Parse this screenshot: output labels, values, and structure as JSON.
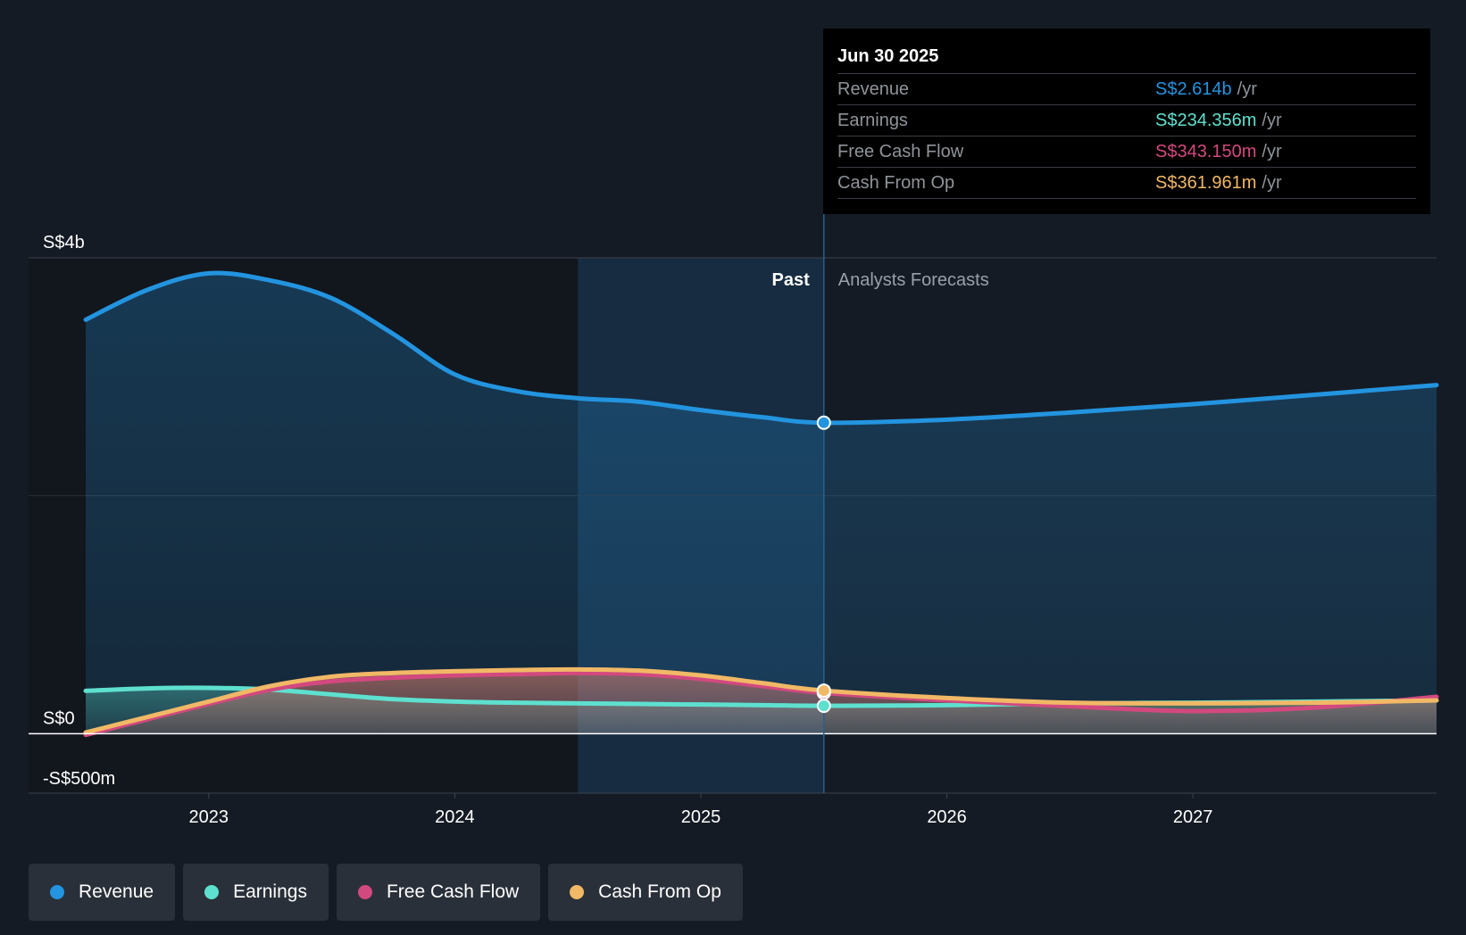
{
  "tooltip": {
    "date": "Jun 30 2025",
    "rows": [
      {
        "label": "Revenue",
        "value": "S$2.614b",
        "unit": "/yr",
        "color": "#2394df"
      },
      {
        "label": "Earnings",
        "value": "S$234.356m",
        "unit": "/yr",
        "color": "#5ee0cf"
      },
      {
        "label": "Free Cash Flow",
        "value": "S$343.150m",
        "unit": "/yr",
        "color": "#d2497f"
      },
      {
        "label": "Cash From Op",
        "value": "S$361.961m",
        "unit": "/yr",
        "color": "#f1b866"
      }
    ]
  },
  "regions": {
    "past": "Past",
    "forecast": "Analysts Forecasts"
  },
  "legend": [
    {
      "label": "Revenue",
      "color": "#2394df"
    },
    {
      "label": "Earnings",
      "color": "#5ee0cf"
    },
    {
      "label": "Free Cash Flow",
      "color": "#d2497f"
    },
    {
      "label": "Cash From Op",
      "color": "#f1b866"
    }
  ],
  "chart_data": {
    "type": "area",
    "title": "",
    "xlabel": "",
    "ylabel": "",
    "y_tick_labels": [
      {
        "value": 4000,
        "label": "S$4b"
      },
      {
        "value": 0,
        "label": "S$0"
      },
      {
        "value": -500,
        "label": "-S$500m"
      }
    ],
    "ylim": [
      -500,
      4000
    ],
    "xlim": [
      2022.5,
      2027.99
    ],
    "x_ticks": [
      2023,
      2024,
      2025,
      2026,
      2027
    ],
    "past_shade_start": 2024.5,
    "forecast_start": 2025.5,
    "series": [
      {
        "name": "Revenue",
        "color": "#2394df",
        "points": [
          [
            2022.5,
            3480
          ],
          [
            2022.75,
            3730
          ],
          [
            2023.0,
            3870
          ],
          [
            2023.25,
            3810
          ],
          [
            2023.5,
            3660
          ],
          [
            2023.75,
            3360
          ],
          [
            2024.0,
            3020
          ],
          [
            2024.25,
            2880
          ],
          [
            2024.5,
            2820
          ],
          [
            2024.75,
            2790
          ],
          [
            2025.0,
            2720
          ],
          [
            2025.25,
            2660
          ],
          [
            2025.5,
            2614
          ],
          [
            2026.0,
            2640
          ],
          [
            2026.5,
            2700
          ],
          [
            2027.0,
            2770
          ],
          [
            2027.5,
            2850
          ],
          [
            2027.99,
            2930
          ]
        ]
      },
      {
        "name": "Earnings",
        "color": "#5ee0cf",
        "points": [
          [
            2022.5,
            360
          ],
          [
            2022.75,
            380
          ],
          [
            2023.0,
            385
          ],
          [
            2023.25,
            370
          ],
          [
            2023.5,
            330
          ],
          [
            2023.75,
            290
          ],
          [
            2024.0,
            270
          ],
          [
            2024.25,
            260
          ],
          [
            2024.5,
            255
          ],
          [
            2024.75,
            250
          ],
          [
            2025.0,
            245
          ],
          [
            2025.25,
            240
          ],
          [
            2025.5,
            234
          ],
          [
            2026.0,
            240
          ],
          [
            2026.5,
            255
          ],
          [
            2027.0,
            260
          ],
          [
            2027.5,
            270
          ],
          [
            2027.99,
            280
          ]
        ]
      },
      {
        "name": "Free Cash Flow",
        "color": "#d2497f",
        "points": [
          [
            2022.5,
            -10
          ],
          [
            2022.75,
            120
          ],
          [
            2023.0,
            250
          ],
          [
            2023.25,
            370
          ],
          [
            2023.5,
            440
          ],
          [
            2023.75,
            470
          ],
          [
            2024.0,
            490
          ],
          [
            2024.25,
            500
          ],
          [
            2024.5,
            510
          ],
          [
            2024.75,
            500
          ],
          [
            2025.0,
            460
          ],
          [
            2025.25,
            400
          ],
          [
            2025.5,
            343
          ],
          [
            2026.0,
            280
          ],
          [
            2026.5,
            230
          ],
          [
            2027.0,
            190
          ],
          [
            2027.5,
            220
          ],
          [
            2027.99,
            310
          ]
        ]
      },
      {
        "name": "Cash From Op",
        "color": "#f1b866",
        "points": [
          [
            2022.5,
            10
          ],
          [
            2022.75,
            140
          ],
          [
            2023.0,
            270
          ],
          [
            2023.25,
            400
          ],
          [
            2023.5,
            480
          ],
          [
            2023.75,
            510
          ],
          [
            2024.0,
            525
          ],
          [
            2024.25,
            535
          ],
          [
            2024.5,
            540
          ],
          [
            2024.75,
            530
          ],
          [
            2025.0,
            490
          ],
          [
            2025.25,
            425
          ],
          [
            2025.5,
            362
          ],
          [
            2026.0,
            300
          ],
          [
            2026.5,
            260
          ],
          [
            2027.0,
            255
          ],
          [
            2027.5,
            260
          ],
          [
            2027.99,
            280
          ]
        ]
      }
    ],
    "highlight_x": 2025.5
  }
}
